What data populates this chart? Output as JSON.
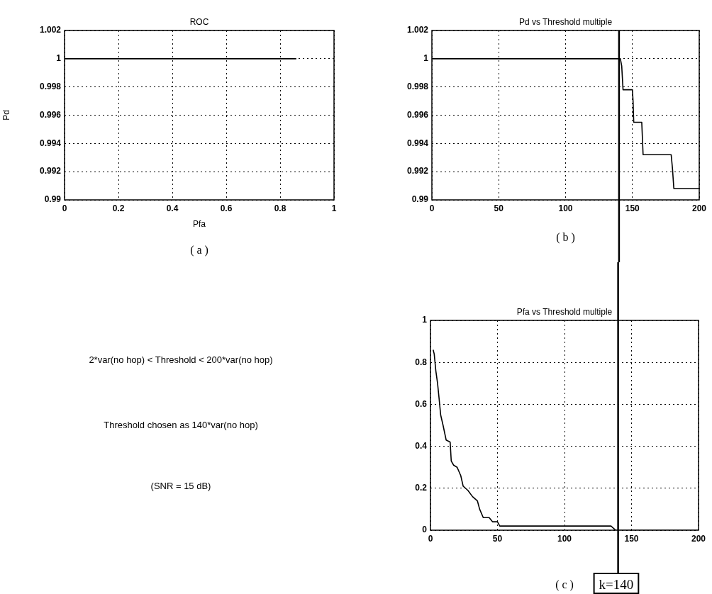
{
  "chart_data": [
    {
      "type": "line",
      "title": "ROC",
      "xlabel": "Pfa",
      "ylabel": "Pd",
      "annotations": [
        "( a )"
      ],
      "xlim": [
        0,
        1
      ],
      "xticks": [
        0,
        0.2,
        0.4,
        0.6,
        0.8,
        1
      ],
      "ylim": [
        0.99,
        1.002
      ],
      "yticks": [
        0.99,
        0.992,
        0.994,
        0.996,
        0.998,
        1,
        1.002
      ],
      "grid": true,
      "marker": "none",
      "series": [
        {
          "color": "#000000",
          "x": [
            0,
            0.86
          ],
          "values": [
            1,
            1
          ]
        }
      ]
    },
    {
      "type": "line",
      "title": "Pd vs Threshold multiple",
      "annotations": [
        "( b )"
      ],
      "xlim": [
        0,
        200
      ],
      "xticks": [
        0,
        50,
        100,
        150,
        200
      ],
      "ylim": [
        0.99,
        1.002
      ],
      "yticks": [
        0.99,
        0.992,
        0.994,
        0.996,
        0.998,
        1,
        1.002
      ],
      "grid": true,
      "marker": "none",
      "ref_lines": [
        {
          "axis": "x",
          "value": 140
        }
      ],
      "series": [
        {
          "color": "#000000",
          "x": [
            0,
            141,
            142,
            143,
            150,
            150.5,
            151,
            157,
            158,
            179,
            180,
            181,
            200
          ],
          "values": [
            1,
            1,
            0.9995,
            0.9978,
            0.9978,
            0.997,
            0.9955,
            0.9955,
            0.9932,
            0.9932,
            0.9922,
            0.9908,
            0.9908
          ]
        }
      ]
    },
    {
      "type": "other",
      "annotations": [
        "2*var(no hop) < Threshold < 200*var(no hop)",
        "Threshold chosen as 140*var(no hop)",
        "(SNR = 15 dB)"
      ]
    },
    {
      "type": "line",
      "title": "Pfa vs Threshold multiple",
      "annotations": [
        "( c )"
      ],
      "xlim": [
        0,
        200
      ],
      "xticks": [
        0,
        50,
        100,
        150,
        200
      ],
      "ylim": [
        0,
        1
      ],
      "yticks": [
        0,
        0.2,
        0.4,
        0.6,
        0.8,
        1
      ],
      "grid": true,
      "marker": "none",
      "ref_lines": [
        {
          "axis": "x",
          "value": 140,
          "label": "k=140"
        }
      ],
      "series": [
        {
          "color": "#000000",
          "x": [
            2,
            2.8,
            4,
            5.3,
            6.4,
            7.6,
            9.4,
            11.7,
            14.7,
            15.5,
            17.3,
            19.9,
            22.6,
            24.4,
            27.9,
            31.4,
            35,
            36.7,
            39.4,
            43.8,
            46.4,
            50,
            51.7,
            134.7,
            138.2,
            200
          ],
          "values": [
            0.86,
            0.84,
            0.76,
            0.7,
            0.63,
            0.55,
            0.5,
            0.43,
            0.42,
            0.33,
            0.31,
            0.3,
            0.26,
            0.21,
            0.19,
            0.16,
            0.14,
            0.1,
            0.06,
            0.06,
            0.04,
            0.04,
            0.02,
            0.02,
            0,
            0
          ]
        }
      ]
    }
  ]
}
